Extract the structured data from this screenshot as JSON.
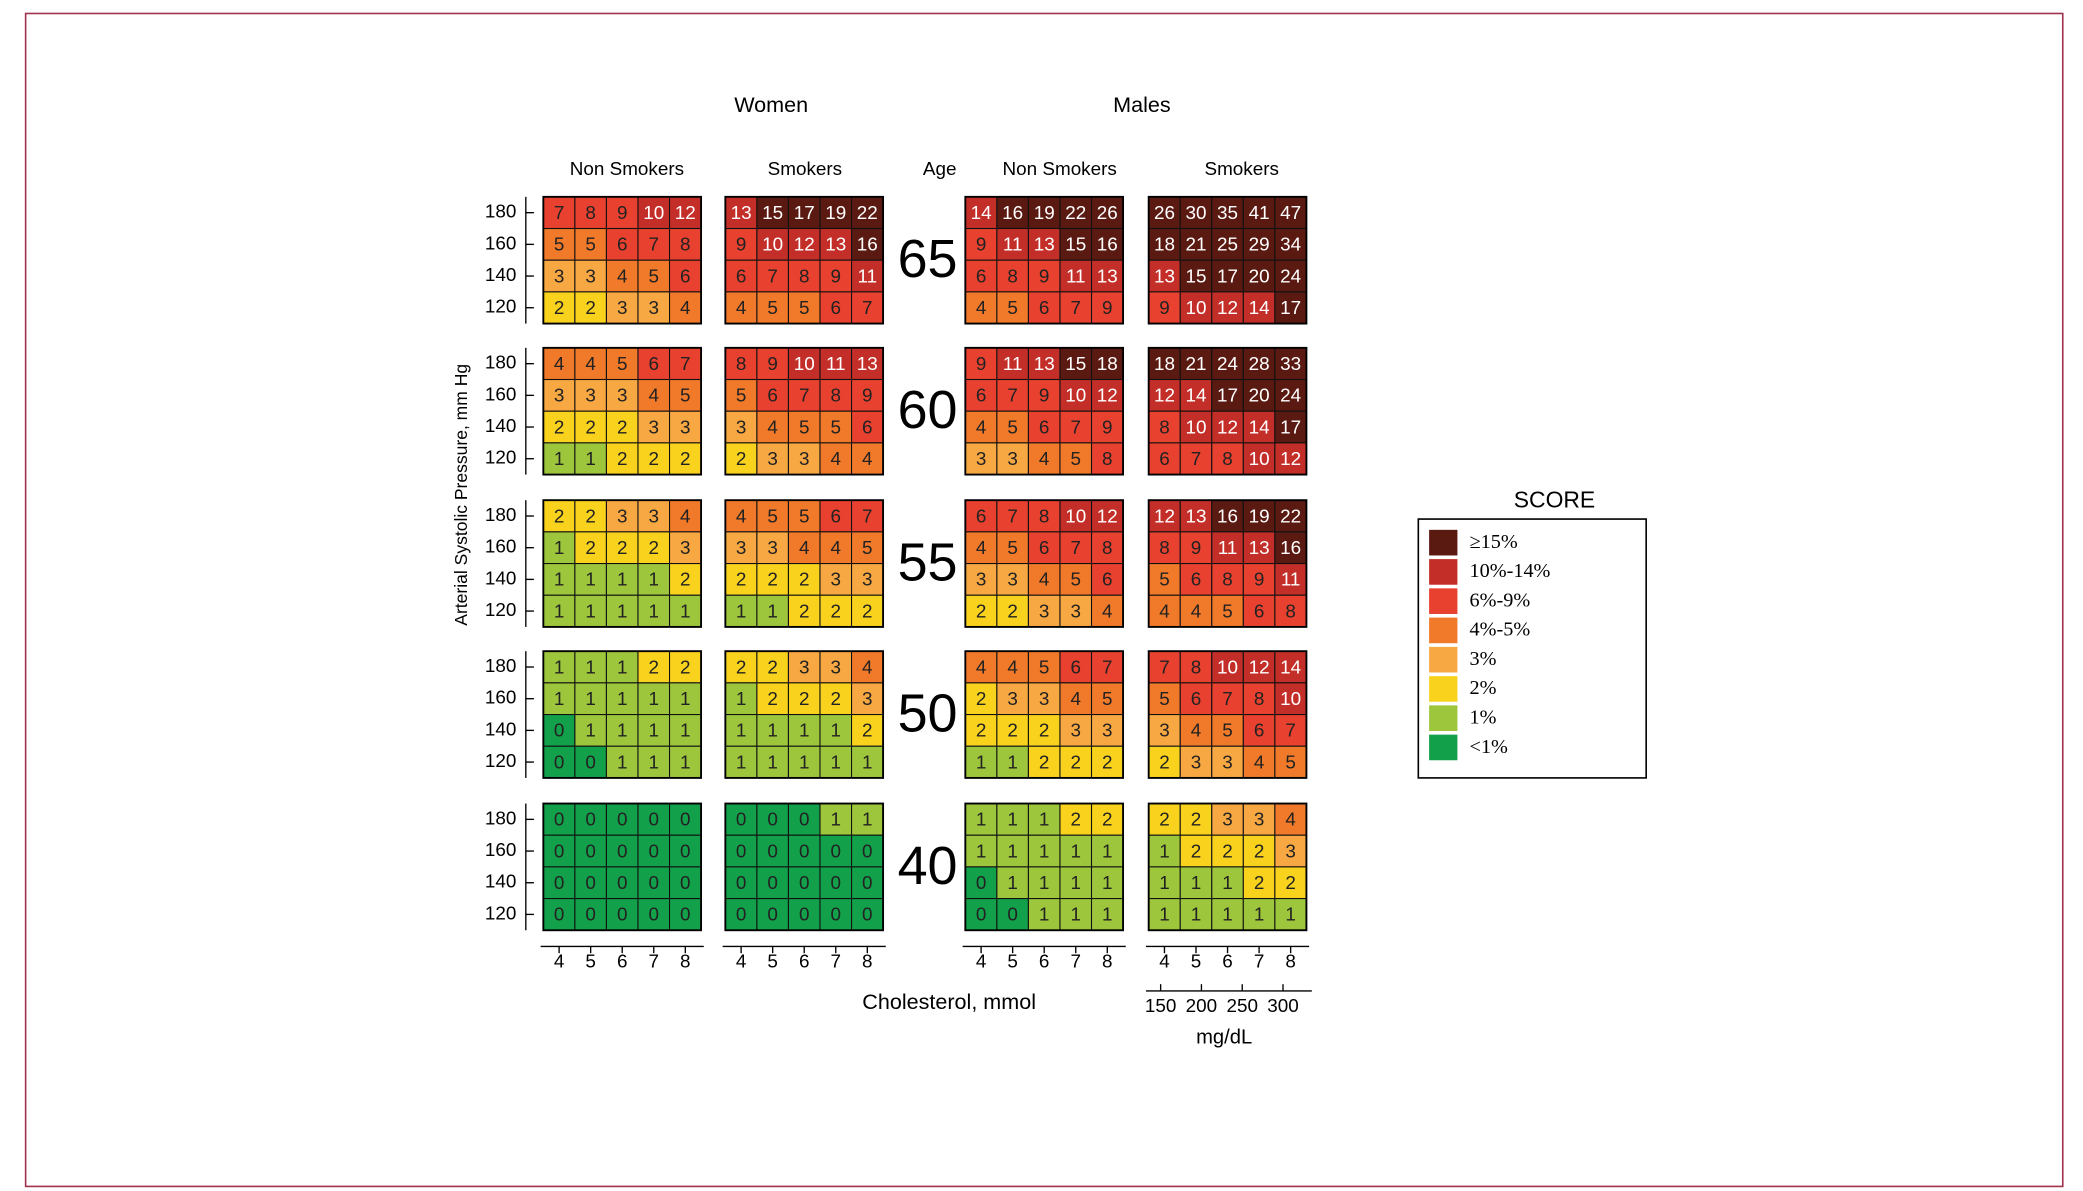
{
  "chart_data": {
    "type": "heatmap",
    "y_label": "Arterial Systolic Pressure, mm Hg",
    "x_label": "Cholesterol, mmol",
    "x2_label": "mg/dL",
    "age_label": "Age",
    "ages": [
      65,
      60,
      55,
      50,
      40
    ],
    "yticks": [
      180,
      160,
      140,
      120
    ],
    "xticks": [
      4,
      5,
      6,
      7,
      8
    ],
    "x2ticks": [
      150,
      200,
      250,
      300
    ],
    "groups": [
      {
        "name": "Women",
        "subgroups": [
          {
            "name": "Non Smokers",
            "values": [
              [
                [
                  7,
                  8,
                  9,
                  10,
                  12
                ],
                [
                  5,
                  5,
                  6,
                  7,
                  8
                ],
                [
                  3,
                  3,
                  4,
                  5,
                  6
                ],
                [
                  2,
                  2,
                  3,
                  3,
                  4
                ]
              ],
              [
                [
                  4,
                  4,
                  5,
                  6,
                  7
                ],
                [
                  3,
                  3,
                  3,
                  4,
                  5
                ],
                [
                  2,
                  2,
                  2,
                  3,
                  3
                ],
                [
                  1,
                  1,
                  2,
                  2,
                  2
                ]
              ],
              [
                [
                  2,
                  2,
                  3,
                  3,
                  4
                ],
                [
                  1,
                  2,
                  2,
                  2,
                  3
                ],
                [
                  1,
                  1,
                  1,
                  1,
                  2
                ],
                [
                  1,
                  1,
                  1,
                  1,
                  1
                ]
              ],
              [
                [
                  1,
                  1,
                  1,
                  2,
                  2
                ],
                [
                  1,
                  1,
                  1,
                  1,
                  1
                ],
                [
                  0,
                  1,
                  1,
                  1,
                  1
                ],
                [
                  0,
                  0,
                  1,
                  1,
                  1
                ]
              ],
              [
                [
                  0,
                  0,
                  0,
                  0,
                  0
                ],
                [
                  0,
                  0,
                  0,
                  0,
                  0
                ],
                [
                  0,
                  0,
                  0,
                  0,
                  0
                ],
                [
                  0,
                  0,
                  0,
                  0,
                  0
                ]
              ]
            ]
          },
          {
            "name": "Smokers",
            "values": [
              [
                [
                  13,
                  15,
                  17,
                  19,
                  22
                ],
                [
                  9,
                  10,
                  12,
                  13,
                  16
                ],
                [
                  6,
                  7,
                  8,
                  9,
                  11
                ],
                [
                  4,
                  5,
                  5,
                  6,
                  7
                ]
              ],
              [
                [
                  8,
                  9,
                  10,
                  11,
                  13
                ],
                [
                  5,
                  6,
                  7,
                  8,
                  9
                ],
                [
                  3,
                  4,
                  5,
                  5,
                  6
                ],
                [
                  2,
                  3,
                  3,
                  4,
                  4
                ]
              ],
              [
                [
                  4,
                  5,
                  5,
                  6,
                  7
                ],
                [
                  3,
                  3,
                  4,
                  4,
                  5
                ],
                [
                  2,
                  2,
                  2,
                  3,
                  3
                ],
                [
                  1,
                  1,
                  2,
                  2,
                  2
                ]
              ],
              [
                [
                  2,
                  2,
                  3,
                  3,
                  4
                ],
                [
                  1,
                  2,
                  2,
                  2,
                  3
                ],
                [
                  1,
                  1,
                  1,
                  1,
                  2
                ],
                [
                  1,
                  1,
                  1,
                  1,
                  1
                ]
              ],
              [
                [
                  0,
                  0,
                  0,
                  1,
                  1
                ],
                [
                  0,
                  0,
                  0,
                  0,
                  0
                ],
                [
                  0,
                  0,
                  0,
                  0,
                  0
                ],
                [
                  0,
                  0,
                  0,
                  0,
                  0
                ]
              ]
            ]
          }
        ]
      },
      {
        "name": "Males",
        "subgroups": [
          {
            "name": "Non Smokers",
            "values": [
              [
                [
                  14,
                  16,
                  19,
                  22,
                  26
                ],
                [
                  9,
                  11,
                  13,
                  15,
                  16
                ],
                [
                  6,
                  8,
                  9,
                  11,
                  13
                ],
                [
                  4,
                  5,
                  6,
                  7,
                  9
                ]
              ],
              [
                [
                  9,
                  11,
                  13,
                  15,
                  18
                ],
                [
                  6,
                  7,
                  9,
                  10,
                  12
                ],
                [
                  4,
                  5,
                  6,
                  7,
                  9
                ],
                [
                  3,
                  3,
                  4,
                  5,
                  8
                ]
              ],
              [
                [
                  6,
                  7,
                  8,
                  10,
                  12
                ],
                [
                  4,
                  5,
                  6,
                  7,
                  8
                ],
                [
                  3,
                  3,
                  4,
                  5,
                  6
                ],
                [
                  2,
                  2,
                  3,
                  3,
                  4
                ]
              ],
              [
                [
                  4,
                  4,
                  5,
                  6,
                  7
                ],
                [
                  2,
                  3,
                  3,
                  4,
                  5
                ],
                [
                  2,
                  2,
                  2,
                  3,
                  3
                ],
                [
                  1,
                  1,
                  2,
                  2,
                  2
                ]
              ],
              [
                [
                  1,
                  1,
                  1,
                  2,
                  2
                ],
                [
                  1,
                  1,
                  1,
                  1,
                  1
                ],
                [
                  0,
                  1,
                  1,
                  1,
                  1
                ],
                [
                  0,
                  0,
                  1,
                  1,
                  1
                ]
              ]
            ]
          },
          {
            "name": "Smokers",
            "values": [
              [
                [
                  26,
                  30,
                  35,
                  41,
                  47
                ],
                [
                  18,
                  21,
                  25,
                  29,
                  34
                ],
                [
                  13,
                  15,
                  17,
                  20,
                  24
                ],
                [
                  9,
                  10,
                  12,
                  14,
                  17
                ]
              ],
              [
                [
                  18,
                  21,
                  24,
                  28,
                  33
                ],
                [
                  12,
                  14,
                  17,
                  20,
                  24
                ],
                [
                  8,
                  10,
                  12,
                  14,
                  17
                ],
                [
                  6,
                  7,
                  8,
                  10,
                  12
                ]
              ],
              [
                [
                  12,
                  13,
                  16,
                  19,
                  22
                ],
                [
                  8,
                  9,
                  11,
                  13,
                  16
                ],
                [
                  5,
                  6,
                  8,
                  9,
                  11
                ],
                [
                  4,
                  4,
                  5,
                  6,
                  8
                ]
              ],
              [
                [
                  7,
                  8,
                  10,
                  12,
                  14
                ],
                [
                  5,
                  6,
                  7,
                  8,
                  10
                ],
                [
                  3,
                  4,
                  5,
                  6,
                  7
                ],
                [
                  2,
                  3,
                  3,
                  4,
                  5
                ]
              ],
              [
                [
                  2,
                  2,
                  3,
                  3,
                  4
                ],
                [
                  1,
                  2,
                  2,
                  2,
                  3
                ],
                [
                  1,
                  1,
                  1,
                  2,
                  2
                ],
                [
                  1,
                  1,
                  1,
                  1,
                  1
                ]
              ]
            ]
          }
        ]
      }
    ],
    "legend": {
      "title": "SCORE",
      "items": [
        {
          "label": "≥15%",
          "min": 15,
          "color": "#5a1a12"
        },
        {
          "label": "10%-14%",
          "min": 10,
          "color": "#c42e28"
        },
        {
          "label": "6%-9%",
          "min": 6,
          "color": "#e8412f"
        },
        {
          "label": "4%-5%",
          "min": 4,
          "color": "#f07a2a"
        },
        {
          "label": "3%",
          "min": 3,
          "color": "#f7a842"
        },
        {
          "label": "2%",
          "min": 2,
          "color": "#f9d21e"
        },
        {
          "label": "1%",
          "min": 1,
          "color": "#9dc63d"
        },
        {
          "label": "<1%",
          "min": 0,
          "color": "#12a04a"
        }
      ]
    }
  }
}
